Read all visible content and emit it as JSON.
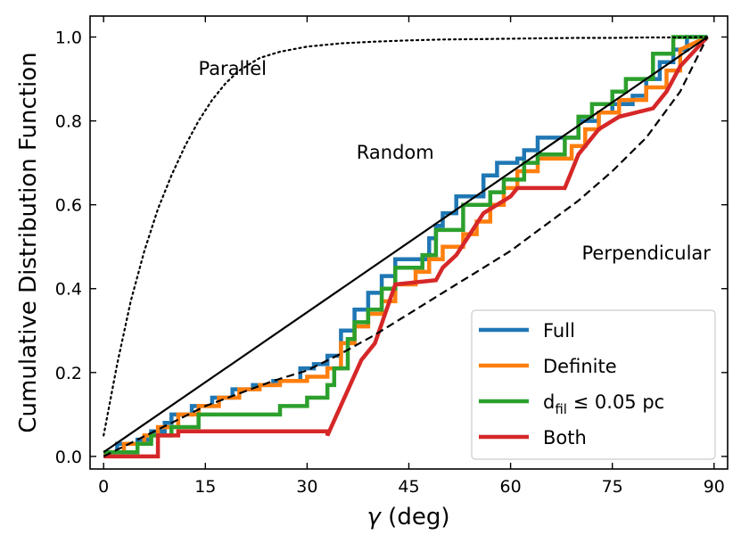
{
  "chart_data": {
    "type": "line",
    "xlabel_symbol": "γ",
    "xlabel_unit": " (deg)",
    "ylabel": "Cumulative Distribution Function",
    "xlim": [
      -2,
      92
    ],
    "ylim": [
      -0.03,
      1.05
    ],
    "xticks": [
      0,
      15,
      30,
      45,
      60,
      75,
      90
    ],
    "yticks": [
      "0.0",
      "0.2",
      "0.4",
      "0.6",
      "0.8",
      "1.0"
    ],
    "annotations": [
      {
        "text": "Parallel",
        "x": 19,
        "y": 0.91
      },
      {
        "text": "Random",
        "x": 43,
        "y": 0.71
      },
      {
        "text": "Perpendicular",
        "x": 80,
        "y": 0.47
      }
    ],
    "reference_curves": [
      {
        "name": "Parallel",
        "style": "dotted",
        "x": [
          0,
          2,
          4,
          6,
          8,
          10,
          12,
          14,
          16,
          18,
          20,
          23,
          26,
          30,
          35,
          40,
          45,
          50,
          55,
          60,
          65,
          70,
          75,
          80,
          85,
          89
        ],
        "y": [
          0.05,
          0.22,
          0.37,
          0.49,
          0.59,
          0.67,
          0.74,
          0.8,
          0.85,
          0.89,
          0.92,
          0.95,
          0.965,
          0.977,
          0.985,
          0.989,
          0.992,
          0.994,
          0.995,
          0.996,
          0.997,
          0.998,
          0.998,
          0.999,
          0.999,
          1.0
        ]
      },
      {
        "name": "Random",
        "style": "solid",
        "x": [
          0,
          89
        ],
        "y": [
          0.01,
          1.0
        ]
      },
      {
        "name": "Perpendicular",
        "style": "dashed",
        "x": [
          0,
          5,
          10,
          15,
          20,
          25,
          30,
          35,
          40,
          45,
          50,
          55,
          60,
          65,
          70,
          75,
          80,
          85,
          89
        ],
        "y": [
          0.0,
          0.04,
          0.08,
          0.12,
          0.15,
          0.18,
          0.205,
          0.245,
          0.29,
          0.34,
          0.39,
          0.44,
          0.49,
          0.55,
          0.61,
          0.68,
          0.76,
          0.87,
          1.0
        ]
      }
    ],
    "series": [
      {
        "name": "Full",
        "color": "#1f77b4",
        "x": [
          0,
          2,
          2,
          5,
          5,
          7,
          7,
          9,
          9,
          10,
          10,
          13,
          13,
          16,
          16,
          19,
          19,
          22,
          22,
          25,
          25,
          29,
          29,
          31,
          31,
          33,
          33,
          35,
          35,
          37,
          37,
          39,
          39,
          41,
          41,
          43,
          43,
          48,
          48,
          49,
          49,
          50,
          50,
          52,
          52,
          56,
          56,
          58,
          58,
          61,
          61,
          62,
          62,
          64,
          64,
          70,
          70,
          73,
          73,
          75,
          75,
          78,
          78,
          80,
          80,
          82,
          82,
          84,
          84,
          86,
          86,
          89
        ],
        "y": [
          0.01,
          0.01,
          0.03,
          0.03,
          0.04,
          0.04,
          0.06,
          0.06,
          0.08,
          0.08,
          0.1,
          0.1,
          0.12,
          0.12,
          0.14,
          0.14,
          0.16,
          0.16,
          0.17,
          0.17,
          0.18,
          0.18,
          0.21,
          0.21,
          0.22,
          0.22,
          0.24,
          0.24,
          0.3,
          0.3,
          0.35,
          0.35,
          0.39,
          0.39,
          0.43,
          0.43,
          0.47,
          0.47,
          0.52,
          0.52,
          0.55,
          0.55,
          0.58,
          0.58,
          0.62,
          0.62,
          0.67,
          0.67,
          0.7,
          0.7,
          0.71,
          0.71,
          0.73,
          0.73,
          0.76,
          0.76,
          0.8,
          0.8,
          0.82,
          0.82,
          0.84,
          0.84,
          0.86,
          0.86,
          0.9,
          0.9,
          0.94,
          0.94,
          0.97,
          0.97,
          1.0,
          1.0
        ]
      },
      {
        "name": "Definite",
        "color": "#ff7f0e",
        "x": [
          0,
          3,
          3,
          6,
          6,
          8,
          8,
          11,
          11,
          14,
          14,
          17,
          17,
          20,
          20,
          23,
          23,
          26,
          26,
          30,
          30,
          33,
          33,
          35,
          35,
          37,
          37,
          39,
          39,
          41,
          41,
          43,
          43,
          46,
          46,
          48,
          48,
          50,
          50,
          53,
          53,
          55,
          55,
          57,
          57,
          59,
          59,
          61,
          61,
          64,
          64,
          69,
          69,
          71,
          71,
          73,
          73,
          76,
          76,
          80,
          80,
          83,
          83,
          85,
          85,
          89
        ],
        "y": [
          0.01,
          0.01,
          0.03,
          0.03,
          0.05,
          0.05,
          0.07,
          0.07,
          0.1,
          0.1,
          0.12,
          0.12,
          0.14,
          0.14,
          0.16,
          0.16,
          0.17,
          0.17,
          0.18,
          0.18,
          0.19,
          0.19,
          0.21,
          0.21,
          0.27,
          0.27,
          0.31,
          0.31,
          0.34,
          0.34,
          0.37,
          0.37,
          0.41,
          0.41,
          0.44,
          0.44,
          0.47,
          0.47,
          0.5,
          0.5,
          0.53,
          0.53,
          0.56,
          0.56,
          0.6,
          0.6,
          0.64,
          0.64,
          0.68,
          0.68,
          0.71,
          0.71,
          0.74,
          0.74,
          0.78,
          0.78,
          0.82,
          0.82,
          0.85,
          0.85,
          0.88,
          0.88,
          0.92,
          0.92,
          0.97,
          1.0
        ]
      },
      {
        "name": "d_fil ≤ 0.05 pc",
        "color": "#2ca02c",
        "x": [
          0,
          5,
          5,
          7,
          7,
          10,
          10,
          14,
          14,
          26,
          26,
          30,
          30,
          33,
          33,
          34,
          34,
          36,
          36,
          37,
          37,
          39,
          39,
          41,
          41,
          43,
          43,
          47,
          47,
          49,
          49,
          53,
          53,
          57,
          57,
          59,
          59,
          62,
          62,
          64,
          64,
          68,
          68,
          70,
          70,
          72,
          72,
          75,
          75,
          77,
          77,
          81,
          81,
          84,
          84,
          89
        ],
        "y": [
          0.01,
          0.01,
          0.03,
          0.03,
          0.05,
          0.05,
          0.07,
          0.07,
          0.1,
          0.1,
          0.12,
          0.12,
          0.14,
          0.14,
          0.17,
          0.17,
          0.21,
          0.21,
          0.28,
          0.28,
          0.32,
          0.32,
          0.35,
          0.35,
          0.4,
          0.4,
          0.45,
          0.45,
          0.48,
          0.48,
          0.54,
          0.54,
          0.6,
          0.6,
          0.63,
          0.63,
          0.66,
          0.66,
          0.7,
          0.7,
          0.72,
          0.72,
          0.76,
          0.76,
          0.81,
          0.81,
          0.84,
          0.84,
          0.87,
          0.87,
          0.9,
          0.9,
          0.96,
          0.96,
          1.0,
          1.0
        ]
      },
      {
        "name": "Both",
        "color": "#d62728",
        "x": [
          0,
          8,
          8,
          11,
          11,
          33,
          33,
          38,
          38,
          40,
          40,
          43,
          43,
          49,
          49,
          50,
          50,
          52,
          52,
          54,
          54,
          56,
          56,
          58,
          58,
          60,
          60,
          61,
          61,
          62,
          62,
          64,
          64,
          68,
          68,
          69,
          69,
          70,
          70,
          73,
          73,
          76,
          76,
          81,
          81,
          83,
          83,
          85,
          85,
          89
        ],
        "y": [
          0.0,
          0.0,
          0.05,
          0.05,
          0.06,
          0.06,
          0.05,
          0.23,
          0.23,
          0.27,
          0.27,
          0.41,
          0.41,
          0.42,
          0.42,
          0.45,
          0.45,
          0.48,
          0.48,
          0.53,
          0.53,
          0.58,
          0.58,
          0.6,
          0.6,
          0.62,
          0.62,
          0.64,
          0.64,
          0.64,
          0.64,
          0.64,
          0.64,
          0.64,
          0.64,
          0.68,
          0.68,
          0.72,
          0.72,
          0.78,
          0.78,
          0.81,
          0.81,
          0.83,
          0.83,
          0.87,
          0.87,
          0.93,
          0.93,
          1.0
        ]
      }
    ],
    "legend": {
      "placement": "lower-right",
      "entries": [
        {
          "label": "Full",
          "color": "#1f77b4"
        },
        {
          "label": "Definite",
          "color": "#ff7f0e"
        },
        {
          "label_main": "d",
          "label_sub": "fil",
          "label_rest": " ≤  0.05 pc",
          "color": "#2ca02c"
        },
        {
          "label": "Both",
          "color": "#d62728"
        }
      ]
    }
  }
}
